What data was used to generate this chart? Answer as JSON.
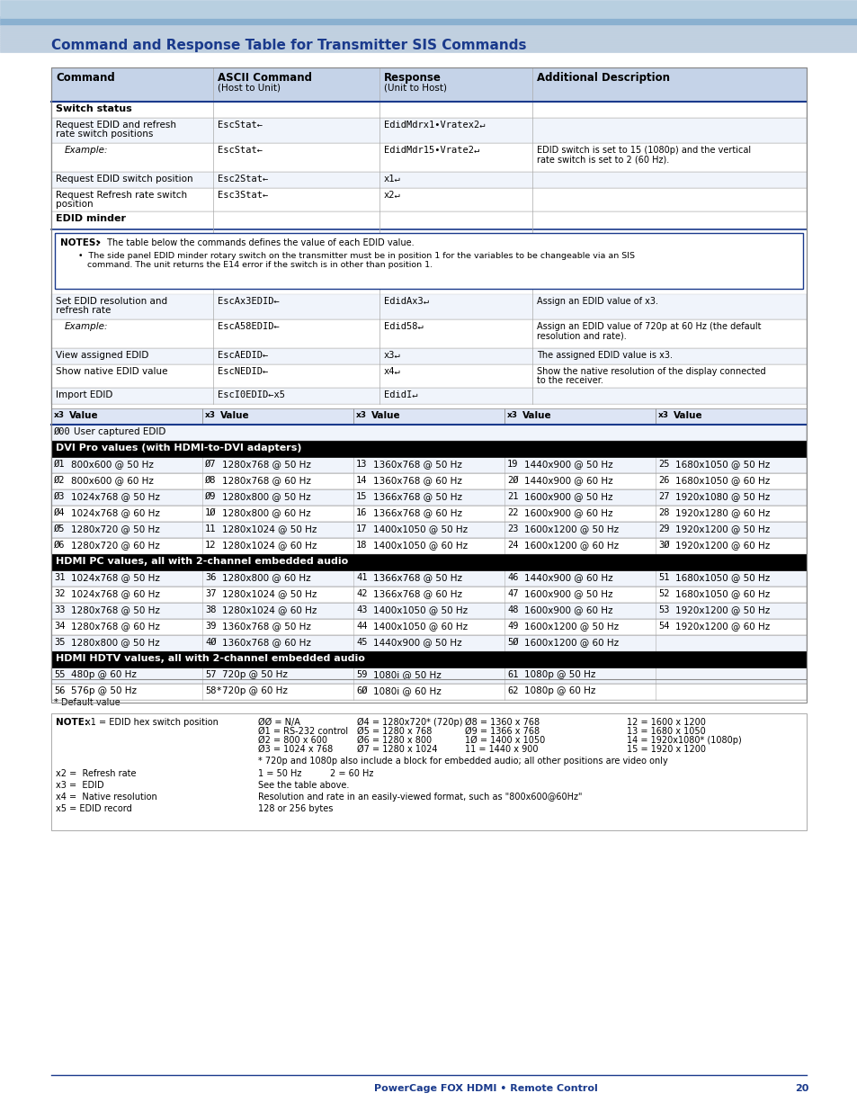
{
  "title": "Command and Response Table for Transmitter SIS Commands",
  "title_color": "#1a3a8c",
  "bg_color": "#ffffff",
  "page_num": "20",
  "footer_text": "PowerCage FOX HDMI • Remote Control",
  "header_bar_color": "#c5d3e8",
  "table_border_color": "#1a3a8c",
  "section_header_bg": "#000000",
  "section_header_color": "#ffffff",
  "row_alt_color": "#e8eef8",
  "row_white": "#ffffff",
  "notes_border": "#1a3a8c",
  "notes_bg": "#ffffff"
}
